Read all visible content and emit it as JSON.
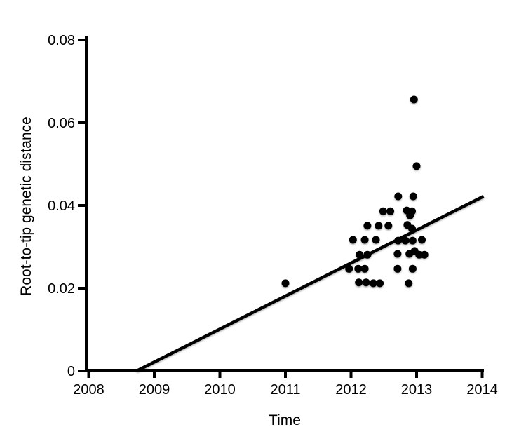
{
  "figure": {
    "background_color": "#ffffff",
    "ink_color": "#000000"
  },
  "chart_data": {
    "type": "scatter",
    "title": "",
    "xlabel": "Time",
    "ylabel": "Root-to-tip genetic distance",
    "xlim": [
      2008,
      2014
    ],
    "ylim": [
      0,
      0.08
    ],
    "x_ticks": [
      2008,
      2009,
      2010,
      2011,
      2012,
      2013,
      2014
    ],
    "x_tick_labels": [
      "2008",
      "2009",
      "2010",
      "2011",
      "2012",
      "2013",
      "2014"
    ],
    "y_ticks": [
      0,
      0.02,
      0.04,
      0.06,
      0.08
    ],
    "y_tick_labels": [
      "0",
      "0.02",
      "0.04",
      "0.06",
      "0.08"
    ],
    "grid": false,
    "legend": null,
    "marker": {
      "shape": "circle",
      "color": "#000000",
      "radius_px": 5.5
    },
    "points": [
      [
        2011.0,
        0.0212
      ],
      [
        2012.96,
        0.0656
      ],
      [
        2013.0,
        0.0495
      ],
      [
        2012.72,
        0.0422
      ],
      [
        2012.95,
        0.0422
      ],
      [
        2012.49,
        0.0386
      ],
      [
        2012.6,
        0.0386
      ],
      [
        2012.85,
        0.0388
      ],
      [
        2012.93,
        0.0386
      ],
      [
        2012.9,
        0.0376
      ],
      [
        2012.25,
        0.0351
      ],
      [
        2012.42,
        0.0351
      ],
      [
        2012.57,
        0.0351
      ],
      [
        2012.86,
        0.0353
      ],
      [
        2012.93,
        0.0344
      ],
      [
        2012.03,
        0.0317
      ],
      [
        2012.21,
        0.0317
      ],
      [
        2012.38,
        0.0317
      ],
      [
        2012.72,
        0.0315
      ],
      [
        2012.83,
        0.0315
      ],
      [
        2012.94,
        0.0315
      ],
      [
        2013.08,
        0.0317
      ],
      [
        2012.13,
        0.0281
      ],
      [
        2012.25,
        0.0281
      ],
      [
        2012.71,
        0.0283
      ],
      [
        2012.89,
        0.0283
      ],
      [
        2012.97,
        0.029
      ],
      [
        2013.04,
        0.0281
      ],
      [
        2013.12,
        0.0281
      ],
      [
        2011.97,
        0.0247
      ],
      [
        2012.11,
        0.0247
      ],
      [
        2012.21,
        0.0247
      ],
      [
        2012.71,
        0.0247
      ],
      [
        2012.94,
        0.0247
      ],
      [
        2012.12,
        0.0214
      ],
      [
        2012.23,
        0.0214
      ],
      [
        2012.34,
        0.0212
      ],
      [
        2012.44,
        0.0212
      ],
      [
        2012.88,
        0.0212
      ]
    ],
    "trend_line": {
      "x1": 2008.73,
      "y1": 0.0,
      "x2": 2014.02,
      "y2": 0.0422,
      "slope_per_year": 0.008,
      "x_intercept": 2008.73,
      "color": "#000000"
    }
  }
}
